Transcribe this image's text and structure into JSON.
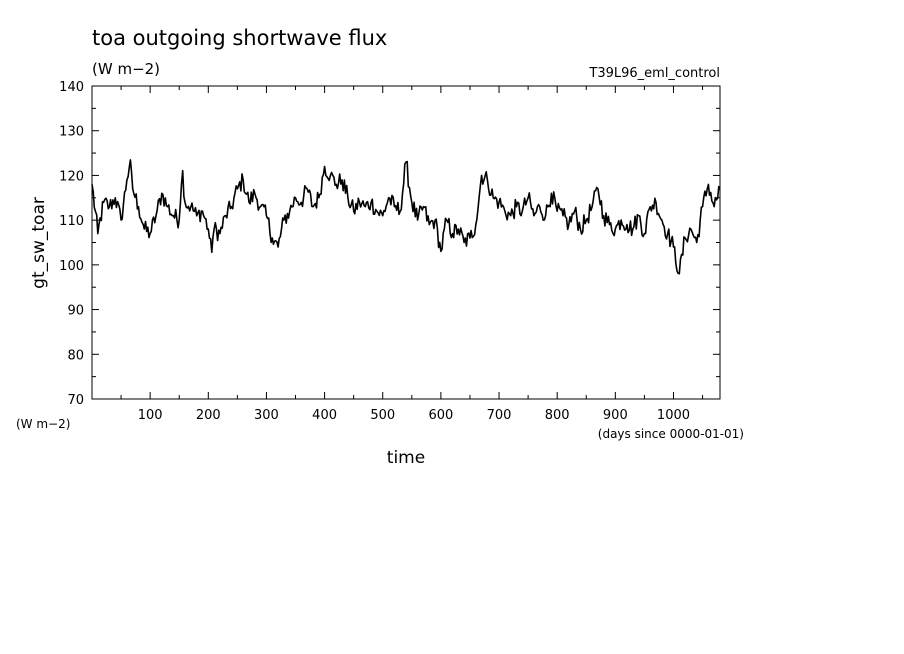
{
  "chart_data": {
    "type": "line",
    "title": "toa outgoing shortwave flux",
    "subtitle": "(W m−2)",
    "case_label": "T39L96_eml_control",
    "ylabel": "gt_sw_toar",
    "yunits_label": "(W m−2)",
    "xlabel": "time",
    "xunits_label": "(days since 0000-01-01)",
    "xlim": [
      0,
      1080
    ],
    "ylim": [
      70,
      140
    ],
    "xticks": [
      100,
      200,
      300,
      400,
      500,
      600,
      700,
      800,
      900,
      1000
    ],
    "yticks": [
      70,
      80,
      90,
      100,
      110,
      120,
      130,
      140
    ],
    "grid": false,
    "series": [
      {
        "x": [
          0,
          10,
          20,
          30,
          40,
          50,
          60,
          65,
          70,
          80,
          90,
          100,
          110,
          120,
          130,
          140,
          150,
          155,
          160,
          170,
          180,
          190,
          200,
          205,
          210,
          220,
          230,
          240,
          250,
          260,
          270,
          280,
          290,
          300,
          310,
          320,
          330,
          340,
          350,
          360,
          370,
          380,
          390,
          400,
          410,
          420,
          430,
          440,
          450,
          460,
          470,
          480,
          490,
          500,
          510,
          520,
          530,
          540,
          550,
          560,
          570,
          580,
          590,
          600,
          610,
          620,
          630,
          640,
          650,
          660,
          670,
          680,
          690,
          700,
          710,
          720,
          730,
          740,
          750,
          760,
          770,
          780,
          790,
          800,
          810,
          820,
          830,
          840,
          850,
          860,
          870,
          880,
          890,
          900,
          910,
          920,
          930,
          940,
          950,
          960,
          970,
          980,
          990,
          1000,
          1005,
          1010,
          1020,
          1030,
          1040,
          1050,
          1060,
          1070,
          1080
        ],
        "values": [
          118,
          107,
          114,
          113,
          115,
          110,
          119,
          123,
          117,
          113,
          108,
          107,
          111,
          116,
          113,
          111,
          110,
          122,
          114,
          113,
          111,
          112,
          108,
          103,
          108,
          107,
          111,
          113,
          117,
          119,
          114,
          116,
          113,
          111,
          106,
          104,
          110,
          112,
          115,
          114,
          117,
          113,
          115,
          122,
          120,
          118,
          119,
          115,
          112,
          114,
          113,
          114,
          112,
          111,
          115,
          113,
          112,
          123,
          114,
          110,
          113,
          109,
          110,
          103,
          110,
          107,
          108,
          105,
          106,
          109,
          120,
          119,
          115,
          114,
          112,
          111,
          113,
          112,
          115,
          111,
          113,
          111,
          116,
          112,
          111,
          109,
          112,
          108,
          110,
          113,
          117,
          111,
          109,
          108,
          110,
          109,
          108,
          111,
          107,
          113,
          114,
          110,
          107,
          104,
          101,
          98,
          106,
          108,
          105,
          113,
          118,
          113,
          117
        ]
      }
    ]
  }
}
